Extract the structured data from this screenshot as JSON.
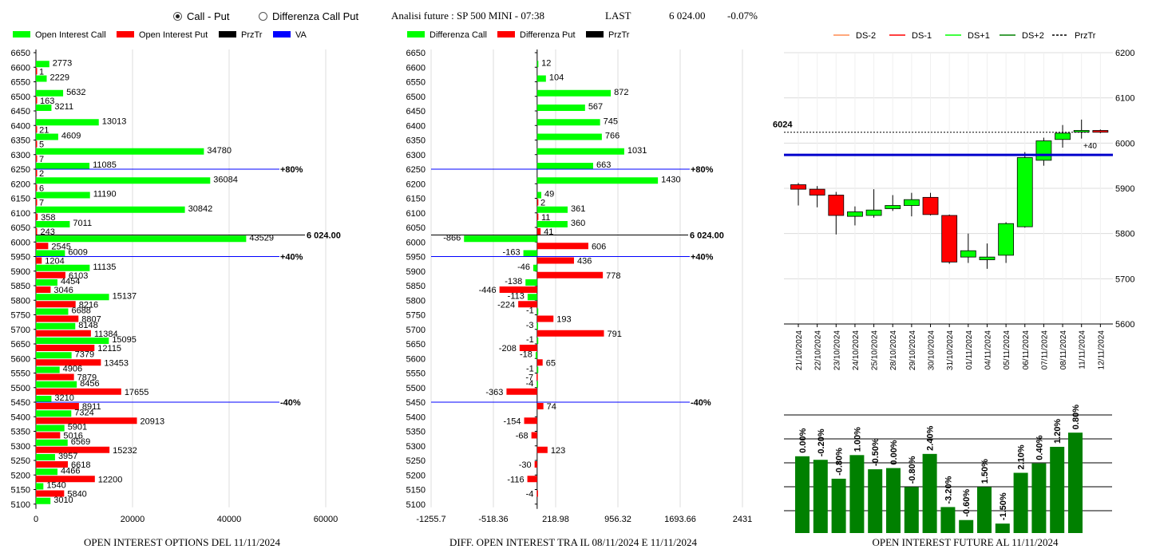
{
  "radios": [
    {
      "label": "Call - Put",
      "checked": true
    },
    {
      "label": "Differenza Call Put",
      "checked": false
    }
  ],
  "header": {
    "title": "Analisi future : SP 500 MINI - 07:38",
    "last_label": "LAST",
    "last_value": "6 024.00",
    "change": "-0.07%"
  },
  "colors": {
    "green": "#00ff00",
    "red": "#ff0000",
    "dark_green": "#008000",
    "blue": "#0000ff",
    "orange": "#ff8c50"
  },
  "chart_data": [
    {
      "type": "bar",
      "title": "OPEN INTEREST OPTIONS DEL 11/11/2024",
      "orientation": "horizontal",
      "legend": [
        {
          "name": "Open Interest Call",
          "color": "#00ff00"
        },
        {
          "name": "Open Interest Put",
          "color": "#ff0000"
        },
        {
          "name": "PrzTr",
          "color": "#000000"
        },
        {
          "name": "VA",
          "color": "#0000ff"
        }
      ],
      "categories": [
        "6650",
        "6600",
        "6550",
        "6500",
        "6450",
        "6400",
        "6350",
        "6300",
        "6250",
        "6200",
        "6150",
        "6100",
        "6050",
        "6000",
        "5950",
        "5900",
        "5850",
        "5800",
        "5750",
        "5700",
        "5650",
        "5600",
        "5550",
        "5500",
        "5450",
        "5400",
        "5350",
        "5300",
        "5250",
        "5200",
        "5150",
        "5100"
      ],
      "series": [
        {
          "name": "Open Interest Call",
          "values": [
            null,
            2773,
            2229,
            5632,
            3211,
            13013,
            4609,
            34780,
            11085,
            36084,
            11190,
            30842,
            7011,
            43529,
            6009,
            11135,
            4454,
            15137,
            6688,
            8148,
            15095,
            7379,
            4906,
            8456,
            3210,
            7324,
            5901,
            6569,
            3957,
            4466,
            1540,
            3010
          ]
        },
        {
          "name": "Open Interest Put",
          "values": [
            null,
            1,
            null,
            163,
            null,
            21,
            5,
            7,
            2,
            6,
            7,
            358,
            243,
            2545,
            1204,
            6103,
            3046,
            8216,
            8807,
            11384,
            12115,
            13453,
            7879,
            17655,
            8911,
            20913,
            5016,
            15232,
            6618,
            12200,
            5840,
            null
          ]
        }
      ],
      "xticks": [
        "0",
        "20000",
        "40000",
        "60000"
      ],
      "xlim": [
        0,
        60000
      ],
      "price_line": {
        "strike": "6024",
        "label": "6 024.00"
      },
      "va_lines": [
        {
          "strike": "6250",
          "label": "+80%"
        },
        {
          "strike": "5950",
          "label": "+40%"
        },
        {
          "strike": "5450",
          "label": "-40%"
        }
      ]
    },
    {
      "type": "bar",
      "title": "DIFF. OPEN INTEREST TRA IL 08/11/2024 E 11/11/2024",
      "orientation": "horizontal",
      "legend": [
        {
          "name": "Differenza Call",
          "color": "#00ff00"
        },
        {
          "name": "Differenza Put",
          "color": "#ff0000"
        },
        {
          "name": "PrzTr",
          "color": "#000000"
        }
      ],
      "categories": [
        "6650",
        "6600",
        "6550",
        "6500",
        "6450",
        "6400",
        "6350",
        "6300",
        "6250",
        "6200",
        "6150",
        "6100",
        "6050",
        "6000",
        "5950",
        "5900",
        "5850",
        "5800",
        "5750",
        "5700",
        "5650",
        "5600",
        "5550",
        "5500",
        "5450",
        "5400",
        "5350",
        "5300",
        "5250",
        "5200",
        "5150",
        "5100"
      ],
      "series": [
        {
          "name": "Differenza Call",
          "values": [
            null,
            12,
            104,
            872,
            567,
            745,
            766,
            1031,
            663,
            1430,
            49,
            361,
            360,
            -866,
            -163,
            -46,
            -138,
            -113,
            -1,
            -3,
            -1,
            -18,
            -1,
            -4,
            null,
            null,
            null,
            null,
            null,
            null,
            null,
            null
          ]
        },
        {
          "name": "Differenza Put",
          "values": [
            null,
            null,
            null,
            null,
            null,
            null,
            null,
            null,
            null,
            null,
            2,
            11,
            41,
            606,
            436,
            778,
            -446,
            -224,
            193,
            791,
            -208,
            65,
            -7,
            -363,
            74,
            -154,
            -68,
            123,
            -30,
            -116,
            -4,
            null
          ]
        }
      ],
      "xticks": [
        "-1255.7",
        "-518.36",
        "218.98",
        "956.32",
        "1693.66",
        "2431"
      ],
      "xlim": [
        -1255.7,
        2431
      ],
      "price_line": {
        "strike": "6024",
        "label": "6 024.00"
      },
      "va_lines": [
        {
          "strike": "6250",
          "label": "+80%"
        },
        {
          "strike": "5950",
          "label": "+40%"
        },
        {
          "strike": "5450",
          "label": "-40%"
        }
      ]
    },
    {
      "type": "candlestick",
      "legend": [
        {
          "name": "DS-2",
          "color": "#ff8c50"
        },
        {
          "name": "DS-1",
          "color": "#ff0000"
        },
        {
          "name": "DS+1",
          "color": "#00ff00"
        },
        {
          "name": "DS+2",
          "color": "#008000"
        },
        {
          "name": "PrzTr",
          "color": "#000000",
          "dashed": true
        }
      ],
      "dates": [
        "21/10/2024",
        "22/10/2024",
        "23/10/2024",
        "24/10/2024",
        "25/10/2024",
        "28/10/2024",
        "29/10/2024",
        "30/10/2024",
        "31/10/2024",
        "01/11/2024",
        "04/11/2024",
        "05/11/2024",
        "06/11/2024",
        "07/11/2024",
        "08/11/2024",
        "11/11/2024",
        "12/11/2024"
      ],
      "candles": [
        {
          "o": 5908,
          "h": 5912,
          "l": 5862,
          "c": 5898
        },
        {
          "o": 5898,
          "h": 5905,
          "l": 5858,
          "c": 5885
        },
        {
          "o": 5885,
          "h": 5892,
          "l": 5798,
          "c": 5840
        },
        {
          "o": 5838,
          "h": 5860,
          "l": 5818,
          "c": 5848
        },
        {
          "o": 5840,
          "h": 5898,
          "l": 5835,
          "c": 5852
        },
        {
          "o": 5855,
          "h": 5885,
          "l": 5850,
          "c": 5862
        },
        {
          "o": 5862,
          "h": 5890,
          "l": 5838,
          "c": 5875
        },
        {
          "o": 5880,
          "h": 5890,
          "l": 5840,
          "c": 5842
        },
        {
          "o": 5840,
          "h": 5842,
          "l": 5733,
          "c": 5737
        },
        {
          "o": 5748,
          "h": 5800,
          "l": 5735,
          "c": 5762
        },
        {
          "o": 5742,
          "h": 5778,
          "l": 5722,
          "c": 5748
        },
        {
          "o": 5752,
          "h": 5825,
          "l": 5735,
          "c": 5822
        },
        {
          "o": 5815,
          "h": 5980,
          "l": 5813,
          "c": 5968
        },
        {
          "o": 5962,
          "h": 6012,
          "l": 5950,
          "c": 6005
        },
        {
          "o": 6008,
          "h": 6040,
          "l": 5990,
          "c": 6022
        },
        {
          "o": 6025,
          "h": 6052,
          "l": 6010,
          "c": 6028
        },
        {
          "o": 6028,
          "h": 6030,
          "l": 6022,
          "c": 6024
        }
      ],
      "yticks": [
        "5600",
        "5700",
        "5800",
        "5900",
        "6000",
        "6100",
        "6200"
      ],
      "ylim": [
        5600,
        6200
      ],
      "price_line": {
        "value": 6024,
        "label": "6024"
      },
      "va_line": {
        "value": 5974,
        "label": "+40"
      }
    },
    {
      "type": "bar",
      "title": "OPEN INTEREST FUTURE AL 11/11/2024",
      "categories": [
        "21/10/2024",
        "22/10/2024",
        "23/10/2024",
        "24/10/2024",
        "25/10/2024",
        "28/10/2024",
        "29/10/2024",
        "30/10/2024",
        "31/10/2024",
        "01/11/2024",
        "04/11/2024",
        "05/11/2024",
        "06/11/2024",
        "07/11/2024",
        "08/11/2024",
        "11/11/2024"
      ],
      "labels": [
        "0.00%",
        "-0.20%",
        "-0.80%",
        "1.00%",
        "-0.50%",
        "0.00%",
        "-0.80%",
        "2.40%",
        "-3.20%",
        "-0.60%",
        "1.50%",
        "-1.50%",
        "2.10%",
        "0.40%",
        "1.20%",
        "0.80%"
      ],
      "values": [
        0.65,
        0.62,
        0.46,
        0.66,
        0.54,
        0.55,
        0.39,
        0.67,
        0.22,
        0.11,
        0.39,
        0.08,
        0.51,
        0.59,
        0.73,
        0.85
      ]
    }
  ]
}
